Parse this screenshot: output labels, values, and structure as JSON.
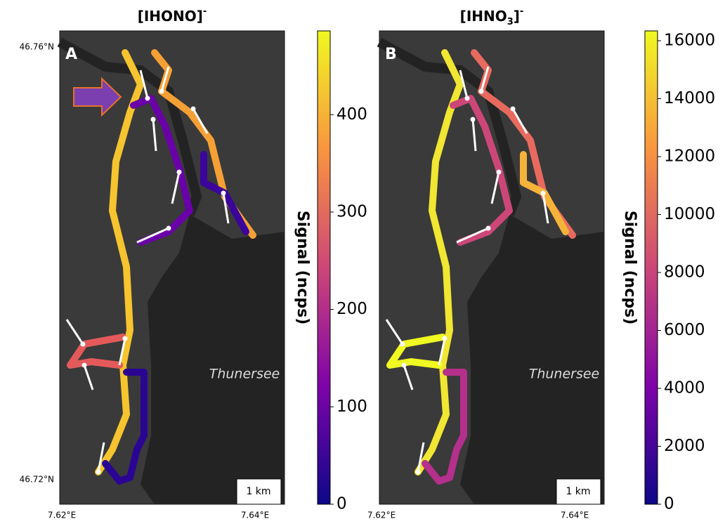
{
  "panels": [
    {
      "title_parts": [
        {
          "text": "[IHONO]"
        },
        {
          "text": "-",
          "shift": "sup"
        }
      ],
      "letter": "A",
      "lake": "Thunersee",
      "scale": "1 km",
      "lat_labels": [
        "46.76°N",
        "46.72°N"
      ],
      "lon_labels": [
        "7.62°E",
        "7.64°E"
      ],
      "colorbar": {
        "label": "Signal (ncps)",
        "lim": [
          0,
          486
        ],
        "ticks": [
          0,
          100,
          200,
          300,
          400
        ]
      }
    },
    {
      "title_parts": [
        {
          "text": "[IHNO"
        },
        {
          "text": "3",
          "shift": "sub"
        },
        {
          "text": "]"
        },
        {
          "text": "-",
          "shift": "sup"
        }
      ],
      "letter": "B",
      "lake": "Thunersee",
      "scale": "1 km",
      "lat_labels": [],
      "lon_labels": [
        "7.62°E",
        "7.64°E"
      ],
      "colorbar": {
        "label": "Signal (ncps)",
        "lim": [
          0,
          16340
        ],
        "ticks": [
          0,
          2000,
          4000,
          6000,
          8000,
          10000,
          12000,
          14000,
          16000
        ]
      }
    }
  ]
}
